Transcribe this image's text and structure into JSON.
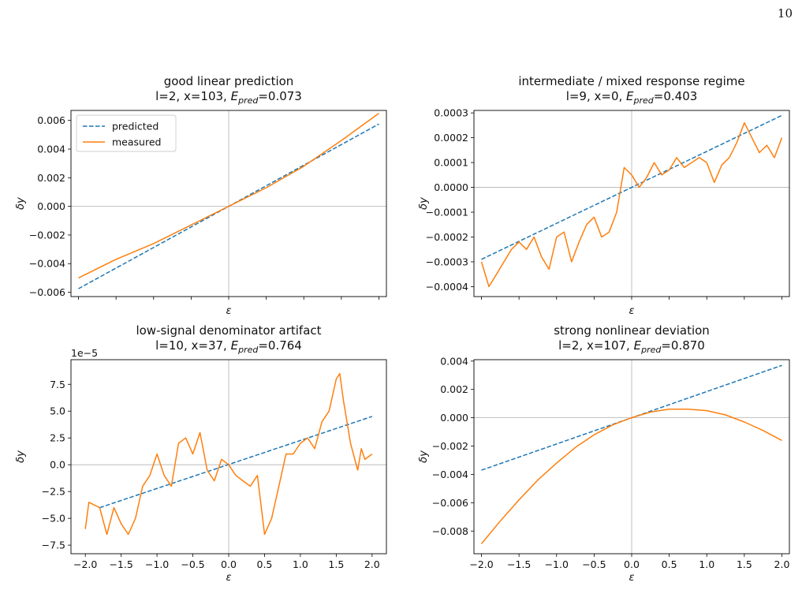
{
  "page": {
    "number": "10"
  },
  "chart_data": [
    {
      "type": "line",
      "title": "good linear prediction",
      "subtitle_prefix": "l=2, x=103, ",
      "subtitle_value": "=0.073",
      "E_sym": "E",
      "E_sub": "pred",
      "xlabel": "ε",
      "ylabel": "δy",
      "xlim": [
        -2.1,
        2.1
      ],
      "ylim": [
        -0.0063,
        0.0067
      ],
      "yticks": [
        -0.006,
        -0.004,
        -0.002,
        0.0,
        0.002,
        0.004,
        0.006
      ],
      "yticklabels": [
        "−0.006",
        "−0.004",
        "−0.002",
        "0.000",
        "0.002",
        "0.004",
        "0.006"
      ],
      "xticks": [
        -2.0,
        -1.5,
        -1.0,
        -0.5,
        0.0,
        0.5,
        1.0,
        1.5,
        2.0
      ],
      "xticklabels": [],
      "offset_text": "",
      "legend": {
        "position": "upper-left",
        "entries": [
          "predicted",
          "measured"
        ]
      },
      "series": [
        {
          "name": "predicted",
          "style": "dashed",
          "color": "#1f77b4",
          "x": [
            -2.0,
            2.0
          ],
          "y": [
            -0.00575,
            0.00575
          ]
        },
        {
          "name": "measured",
          "style": "solid",
          "color": "#ff7f0e",
          "x": [
            -2.0,
            -1.5,
            -1.0,
            -0.5,
            0.0,
            0.5,
            1.0,
            1.5,
            2.0
          ],
          "y": [
            -0.005,
            -0.0037,
            -0.0026,
            -0.0013,
            0.0,
            0.0013,
            0.0028,
            0.0046,
            0.0065
          ]
        }
      ]
    },
    {
      "type": "line",
      "title": "intermediate / mixed response regime",
      "subtitle_prefix": "l=9, x=0, ",
      "subtitle_value": "=0.403",
      "E_sym": "E",
      "E_sub": "pred",
      "xlabel": "ε",
      "ylabel": "δy",
      "xlim": [
        -2.1,
        2.1
      ],
      "ylim": [
        -0.00044,
        0.00031
      ],
      "yticks": [
        -0.0004,
        -0.0003,
        -0.0002,
        -0.0001,
        0.0,
        0.0001,
        0.0002,
        0.0003
      ],
      "yticklabels": [
        "−0.0004",
        "−0.0003",
        "−0.0002",
        "−0.0001",
        "0.0000",
        "0.0001",
        "0.0002",
        "0.0003"
      ],
      "xticks": [
        -2.0,
        -1.5,
        -1.0,
        -0.5,
        0.0,
        0.5,
        1.0,
        1.5,
        2.0
      ],
      "xticklabels": [],
      "offset_text": "",
      "series": [
        {
          "name": "",
          "style": "dashed",
          "color": "#1f77b4",
          "x": [
            -2.0,
            2.0
          ],
          "y": [
            -0.00029,
            0.00029
          ]
        },
        {
          "name": "",
          "style": "solid",
          "color": "#ff7f0e",
          "x": [
            -2.0,
            -1.9,
            -1.8,
            -1.7,
            -1.6,
            -1.5,
            -1.4,
            -1.3,
            -1.2,
            -1.1,
            -1.0,
            -0.9,
            -0.8,
            -0.7,
            -0.6,
            -0.5,
            -0.4,
            -0.3,
            -0.2,
            -0.1,
            0.0,
            0.1,
            0.2,
            0.3,
            0.4,
            0.5,
            0.6,
            0.7,
            0.8,
            0.9,
            1.0,
            1.1,
            1.2,
            1.3,
            1.4,
            1.5,
            1.6,
            1.7,
            1.8,
            1.9,
            2.0
          ],
          "y": [
            -0.0003,
            -0.0004,
            -0.00035,
            -0.0003,
            -0.00025,
            -0.00022,
            -0.00025,
            -0.0002,
            -0.00028,
            -0.00033,
            -0.0002,
            -0.00018,
            -0.0003,
            -0.00022,
            -0.00015,
            -0.00012,
            -0.0002,
            -0.00018,
            -0.0001,
            8e-05,
            5e-05,
            0.0,
            4e-05,
            0.0001,
            5e-05,
            7e-05,
            0.00012,
            8e-05,
            0.0001,
            0.00012,
            0.0001,
            2e-05,
            9e-05,
            0.00012,
            0.00018,
            0.00026,
            0.0002,
            0.00014,
            0.00017,
            0.00012,
            0.0002
          ]
        }
      ]
    },
    {
      "type": "line",
      "title": "low-signal denominator artifact",
      "subtitle_prefix": "l=10, x=37, ",
      "subtitle_value": "=0.764",
      "E_sym": "E",
      "E_sub": "pred",
      "xlabel": "ε",
      "ylabel": "δy",
      "xlim": [
        -2.2,
        2.2
      ],
      "ylim": [
        -8.3,
        9.8
      ],
      "yticks": [
        -7.5,
        -5.0,
        -2.5,
        0.0,
        2.5,
        5.0,
        7.5
      ],
      "yticklabels": [
        "−7.5",
        "−5.0",
        "−2.5",
        "0.0",
        "2.5",
        "5.0",
        "7.5"
      ],
      "xticks": [
        -2.0,
        -1.5,
        -1.0,
        -0.5,
        0.0,
        0.5,
        1.0,
        1.5,
        2.0
      ],
      "xticklabels": [
        "−2.0",
        "−1.5",
        "−1.0",
        "−0.5",
        "0.0",
        "0.5",
        "1.0",
        "1.5",
        "2.0"
      ],
      "offset_text": "1e−5",
      "series": [
        {
          "name": "",
          "style": "dashed",
          "color": "#1f77b4",
          "x": [
            -1.8,
            2.0
          ],
          "y": [
            -4.0,
            4.5
          ]
        },
        {
          "name": "",
          "style": "solid",
          "color": "#ff7f0e",
          "x": [
            -2.0,
            -1.95,
            -1.8,
            -1.7,
            -1.6,
            -1.5,
            -1.4,
            -1.3,
            -1.2,
            -1.1,
            -1.0,
            -0.9,
            -0.8,
            -0.7,
            -0.6,
            -0.5,
            -0.4,
            -0.3,
            -0.2,
            -0.1,
            0.0,
            0.1,
            0.2,
            0.3,
            0.4,
            0.5,
            0.6,
            0.7,
            0.8,
            0.9,
            1.0,
            1.1,
            1.2,
            1.3,
            1.4,
            1.5,
            1.55,
            1.6,
            1.7,
            1.8,
            1.85,
            1.9,
            2.0
          ],
          "y": [
            -6.0,
            -3.5,
            -4.0,
            -6.5,
            -4.0,
            -5.5,
            -6.5,
            -5.0,
            -2.0,
            -1.0,
            1.0,
            -1.0,
            -2.0,
            2.0,
            2.5,
            1.0,
            3.0,
            -0.5,
            -1.5,
            0.5,
            0.0,
            -1.0,
            -1.5,
            -2.0,
            -1.0,
            -6.5,
            -5.0,
            -2.0,
            1.0,
            1.0,
            2.0,
            2.5,
            1.5,
            4.0,
            5.0,
            8.0,
            8.5,
            6.0,
            2.0,
            -0.5,
            1.5,
            0.5,
            1.0
          ]
        }
      ]
    },
    {
      "type": "line",
      "title": "strong nonlinear deviation",
      "subtitle_prefix": "l=2, x=107, ",
      "subtitle_value": "=0.870",
      "E_sym": "E",
      "E_sub": "pred",
      "xlabel": "ε",
      "ylabel": "δy",
      "xlim": [
        -2.1,
        2.1
      ],
      "ylim": [
        -0.0096,
        0.0041
      ],
      "yticks": [
        -0.008,
        -0.006,
        -0.004,
        -0.002,
        0.0,
        0.002,
        0.004
      ],
      "yticklabels": [
        "−0.008",
        "−0.006",
        "−0.004",
        "−0.002",
        "0.000",
        "0.002",
        "0.004"
      ],
      "xticks": [
        -2.0,
        -1.5,
        -1.0,
        -0.5,
        0.0,
        0.5,
        1.0,
        1.5,
        2.0
      ],
      "xticklabels": [
        "−2.0",
        "−1.5",
        "−1.0",
        "−0.5",
        "0.0",
        "0.5",
        "1.0",
        "1.5",
        "2.0"
      ],
      "offset_text": "",
      "series": [
        {
          "name": "",
          "style": "dashed",
          "color": "#1f77b4",
          "x": [
            -2.0,
            2.0
          ],
          "y": [
            -0.0037,
            0.0037
          ]
        },
        {
          "name": "",
          "style": "solid",
          "color": "#ff7f0e",
          "x": [
            -2.0,
            -1.75,
            -1.5,
            -1.25,
            -1.0,
            -0.75,
            -0.5,
            -0.25,
            0.0,
            0.25,
            0.5,
            0.75,
            1.0,
            1.25,
            1.5,
            1.75,
            2.0
          ],
          "y": [
            -0.0089,
            -0.0073,
            -0.0058,
            -0.0044,
            -0.0032,
            -0.0021,
            -0.0012,
            -0.0005,
            0.0,
            0.0004,
            0.0006,
            0.0006,
            0.0005,
            0.0002,
            -0.0003,
            -0.0009,
            -0.0016
          ]
        }
      ]
    }
  ]
}
